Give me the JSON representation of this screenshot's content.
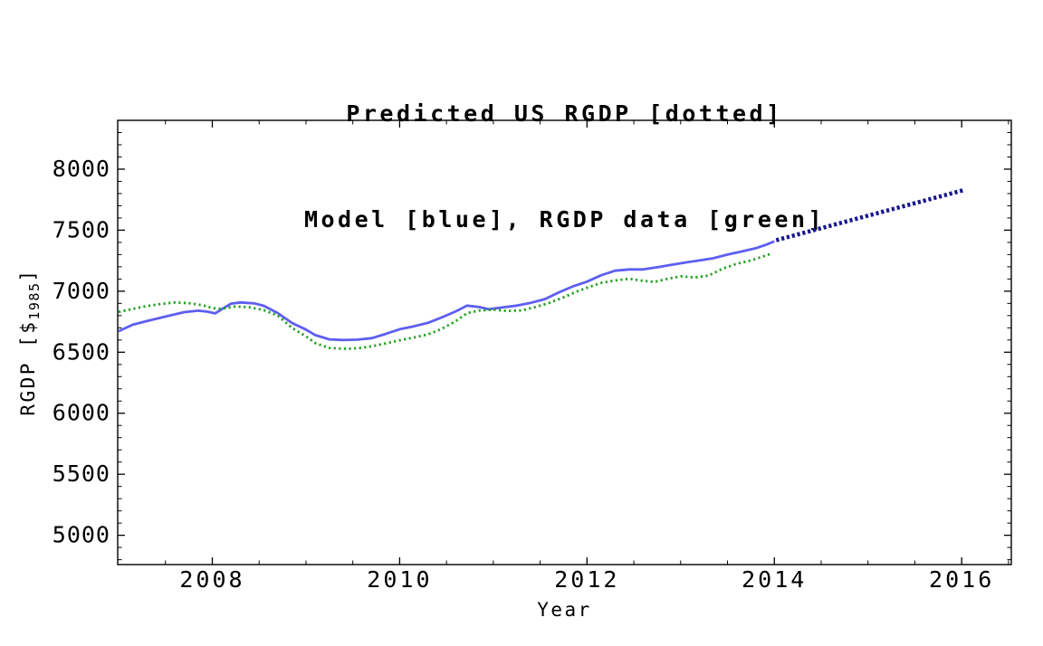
{
  "title": {
    "line1": "Predicted US RGDP [dotted]",
    "line2": "Model [blue], RGDP data [green]"
  },
  "axes": {
    "xlabel": "Year",
    "ylabel_prefix": "RGDP [$",
    "ylabel_sub": "1985",
    "ylabel_suffix": "]"
  },
  "colors": {
    "model_blue": "#5e5ef0",
    "data_green": "#21a121",
    "predicted_navy": "#17178c",
    "frame": "#000000",
    "background": "#ffffff"
  },
  "chart_data": {
    "type": "line",
    "title": "Predicted US RGDP [dotted]\nModel [blue], RGDP data [green]",
    "xlabel": "Year",
    "ylabel": "RGDP [$1985]",
    "xlim": [
      2006.99,
      2016.53
    ],
    "ylim": [
      4760,
      8400
    ],
    "grid": false,
    "frame": true,
    "legend": "described in title",
    "x_ticks_major": [
      2008,
      2010,
      2012,
      2014,
      2016
    ],
    "x_tick_labels": [
      "2008",
      "2010",
      "2012",
      "2014",
      "2016"
    ],
    "x_minor_step": 0.5,
    "y_ticks_major": [
      5000,
      5500,
      6000,
      6500,
      7000,
      7500,
      8000
    ],
    "y_tick_labels": [
      "5000",
      "5500",
      "6000",
      "6500",
      "7000",
      "7500",
      "8000"
    ],
    "y_minor_step": 100,
    "series": [
      {
        "name": "Model (blue, solid)",
        "color": "#5e5ef0",
        "style": "solid",
        "width": 2.8,
        "dash": null,
        "points": [
          [
            2007.0,
            6672
          ],
          [
            2007.15,
            6725
          ],
          [
            2007.3,
            6755
          ],
          [
            2007.5,
            6792
          ],
          [
            2007.7,
            6828
          ],
          [
            2007.85,
            6840
          ],
          [
            2007.95,
            6832
          ],
          [
            2008.03,
            6818
          ],
          [
            2008.1,
            6852
          ],
          [
            2008.2,
            6898
          ],
          [
            2008.3,
            6908
          ],
          [
            2008.45,
            6900
          ],
          [
            2008.55,
            6880
          ],
          [
            2008.7,
            6820
          ],
          [
            2008.85,
            6740
          ],
          [
            2009.0,
            6685
          ],
          [
            2009.1,
            6640
          ],
          [
            2009.25,
            6605
          ],
          [
            2009.4,
            6600
          ],
          [
            2009.55,
            6603
          ],
          [
            2009.7,
            6615
          ],
          [
            2009.85,
            6650
          ],
          [
            2010.0,
            6688
          ],
          [
            2010.15,
            6712
          ],
          [
            2010.3,
            6740
          ],
          [
            2010.45,
            6785
          ],
          [
            2010.6,
            6835
          ],
          [
            2010.72,
            6882
          ],
          [
            2010.85,
            6870
          ],
          [
            2010.95,
            6852
          ],
          [
            2011.1,
            6868
          ],
          [
            2011.25,
            6882
          ],
          [
            2011.4,
            6905
          ],
          [
            2011.55,
            6935
          ],
          [
            2011.7,
            6990
          ],
          [
            2011.85,
            7040
          ],
          [
            2012.0,
            7078
          ],
          [
            2012.15,
            7130
          ],
          [
            2012.3,
            7168
          ],
          [
            2012.45,
            7178
          ],
          [
            2012.6,
            7178
          ],
          [
            2012.75,
            7196
          ],
          [
            2012.9,
            7215
          ],
          [
            2013.05,
            7235
          ],
          [
            2013.2,
            7252
          ],
          [
            2013.35,
            7270
          ],
          [
            2013.5,
            7300
          ],
          [
            2013.65,
            7325
          ],
          [
            2013.8,
            7352
          ],
          [
            2013.9,
            7378
          ],
          [
            2014.0,
            7408
          ]
        ]
      },
      {
        "name": "RGDP data (green, dotted)",
        "color": "#21a121",
        "style": "dotted",
        "width": 2.8,
        "dash": [
          2.2,
          3.4
        ],
        "points": [
          [
            2007.0,
            6830
          ],
          [
            2007.15,
            6855
          ],
          [
            2007.3,
            6878
          ],
          [
            2007.45,
            6895
          ],
          [
            2007.6,
            6908
          ],
          [
            2007.75,
            6902
          ],
          [
            2007.9,
            6885
          ],
          [
            2008.0,
            6862
          ],
          [
            2008.1,
            6855
          ],
          [
            2008.25,
            6875
          ],
          [
            2008.4,
            6868
          ],
          [
            2008.55,
            6845
          ],
          [
            2008.7,
            6800
          ],
          [
            2008.85,
            6700
          ],
          [
            2009.0,
            6630
          ],
          [
            2009.1,
            6575
          ],
          [
            2009.25,
            6535
          ],
          [
            2009.4,
            6528
          ],
          [
            2009.55,
            6532
          ],
          [
            2009.7,
            6548
          ],
          [
            2009.85,
            6572
          ],
          [
            2010.0,
            6598
          ],
          [
            2010.15,
            6620
          ],
          [
            2010.3,
            6645
          ],
          [
            2010.45,
            6692
          ],
          [
            2010.6,
            6755
          ],
          [
            2010.72,
            6820
          ],
          [
            2010.85,
            6842
          ],
          [
            2011.0,
            6848
          ],
          [
            2011.15,
            6838
          ],
          [
            2011.3,
            6842
          ],
          [
            2011.45,
            6870
          ],
          [
            2011.6,
            6905
          ],
          [
            2011.75,
            6950
          ],
          [
            2011.9,
            7000
          ],
          [
            2012.0,
            7028
          ],
          [
            2012.15,
            7068
          ],
          [
            2012.3,
            7088
          ],
          [
            2012.45,
            7102
          ],
          [
            2012.6,
            7085
          ],
          [
            2012.72,
            7076
          ],
          [
            2012.85,
            7100
          ],
          [
            2013.0,
            7122
          ],
          [
            2013.15,
            7112
          ],
          [
            2013.3,
            7128
          ],
          [
            2013.45,
            7185
          ],
          [
            2013.6,
            7225
          ],
          [
            2013.75,
            7252
          ],
          [
            2013.88,
            7285
          ],
          [
            2013.97,
            7308
          ]
        ]
      },
      {
        "name": "Predicted US RGDP (dark blue, thick dotted)",
        "color": "#17178c",
        "style": "dotted-bold",
        "width": 4.6,
        "dash": [
          3.2,
          2.8
        ],
        "points": [
          [
            2014.02,
            7418
          ],
          [
            2016.02,
            7828
          ]
        ]
      }
    ]
  }
}
